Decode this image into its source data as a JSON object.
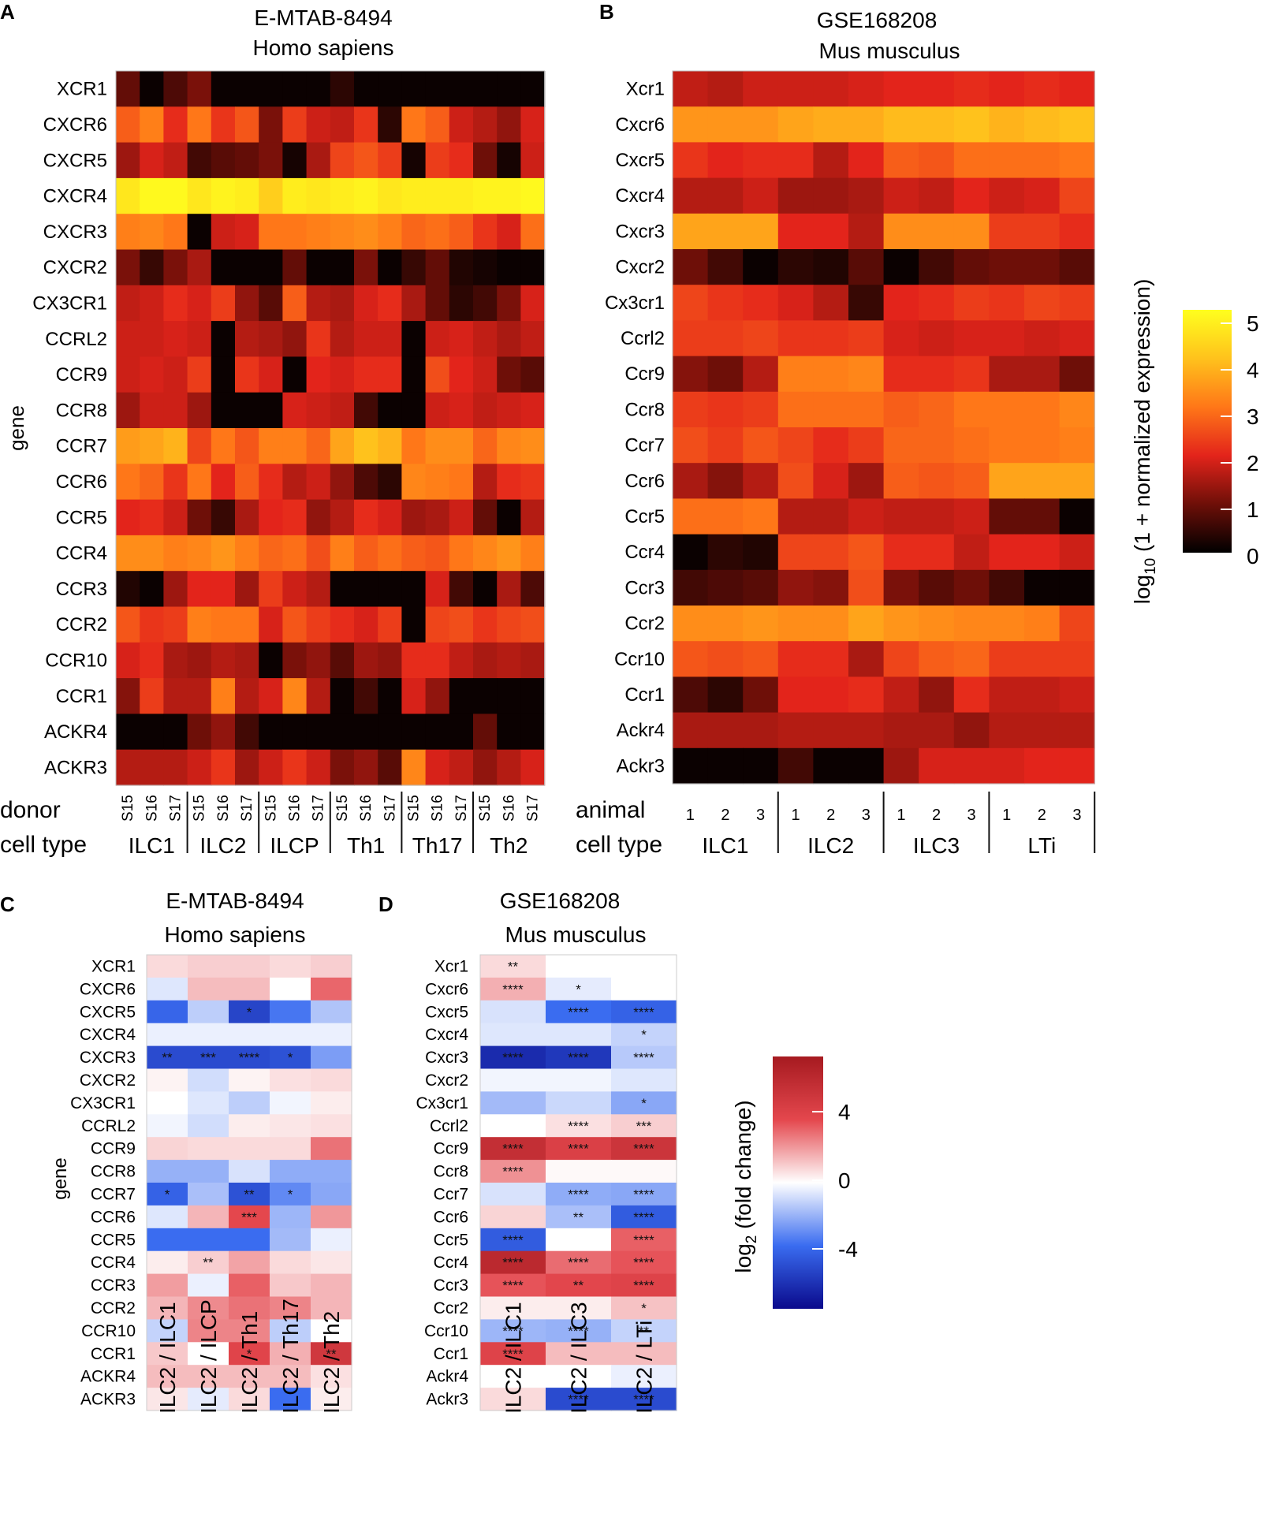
{
  "panels": {
    "A": {
      "letter": "A",
      "title1": "E-MTAB-8494",
      "title2": "Homo sapiens"
    },
    "B": {
      "letter": "B",
      "title1": "GSE168208",
      "title2": "Mus musculus"
    },
    "C": {
      "letter": "C",
      "title1": "E-MTAB-8494",
      "title2": "Homo sapiens"
    },
    "D": {
      "letter": "D",
      "title1": "GSE168208",
      "title2": "Mus musculus"
    }
  },
  "legend_expr": {
    "title": "log",
    "sub": "10",
    "title_rest": " (1 + normalized expression)",
    "ticks": [
      "5",
      "4",
      "3",
      "2",
      "1",
      "0"
    ]
  },
  "legend_fc": {
    "title": "log",
    "sub": "2",
    "title_rest": " (fold change)",
    "ticks": [
      "4",
      "0",
      "-4"
    ]
  },
  "chart_data": [
    {
      "type": "heatmap",
      "panel": "A",
      "ylabel": "gene",
      "rows": [
        "XCR1",
        "CXCR6",
        "CXCR5",
        "CXCR4",
        "CXCR3",
        "CXCR2",
        "CX3CR1",
        "CCRL2",
        "CCR9",
        "CCR8",
        "CCR7",
        "CCR6",
        "CCR5",
        "CCR4",
        "CCR3",
        "CCR2",
        "CCR10",
        "CCR1",
        "ACKR4",
        "ACKR3"
      ],
      "row_label": "donor",
      "group_label": "cell type",
      "donors": [
        "S15",
        "S16",
        "S17"
      ],
      "groups": [
        "ILC1",
        "ILC2",
        "ILCP",
        "Th1",
        "Th17",
        "Th2"
      ],
      "scale": [
        0,
        5
      ],
      "values": [
        [
          0.9,
          0.1,
          0.7,
          1.1,
          0.1,
          0.1,
          0.1,
          0.1,
          0.1,
          0.4,
          0.1,
          0.1,
          0.1,
          0.1,
          0.1,
          0.1,
          0.1,
          0.1
        ],
        [
          2.7,
          3.1,
          2.1,
          3.0,
          2.2,
          2.6,
          1.1,
          2.3,
          1.8,
          1.7,
          2.2,
          0.4,
          3.0,
          2.7,
          1.8,
          1.6,
          1.3,
          1.9
        ],
        [
          1.4,
          1.9,
          1.7,
          0.6,
          0.8,
          0.9,
          1.1,
          0.2,
          1.5,
          2.4,
          2.6,
          2.3,
          0.2,
          2.3,
          2.1,
          1.0,
          0.2,
          1.8
        ],
        [
          4.6,
          4.9,
          4.9,
          4.6,
          4.8,
          4.7,
          4.2,
          4.7,
          4.6,
          4.7,
          4.8,
          4.6,
          4.7,
          4.7,
          4.7,
          4.8,
          4.8,
          4.9
        ],
        [
          3.1,
          3.2,
          3.0,
          0.1,
          1.8,
          1.9,
          3.0,
          3.0,
          3.1,
          3.2,
          3.3,
          3.1,
          2.8,
          2.9,
          2.7,
          2.2,
          1.9,
          2.9
        ],
        [
          1.1,
          0.5,
          1.1,
          1.5,
          0.1,
          0.1,
          0.1,
          0.9,
          0.1,
          0.1,
          1.1,
          0.1,
          0.5,
          0.9,
          0.3,
          0.2,
          0.1,
          0.1
        ],
        [
          1.7,
          1.8,
          2.1,
          1.9,
          2.3,
          1.3,
          0.8,
          2.7,
          1.6,
          1.5,
          1.9,
          2.1,
          1.5,
          0.9,
          0.4,
          0.6,
          1.1,
          1.9
        ],
        [
          1.8,
          1.8,
          1.9,
          1.8,
          0.1,
          1.6,
          1.5,
          1.3,
          2.2,
          1.6,
          1.8,
          1.8,
          0.1,
          1.8,
          1.9,
          1.7,
          1.5,
          1.7
        ],
        [
          1.8,
          1.9,
          1.8,
          2.3,
          0.1,
          2.2,
          1.9,
          0.1,
          2.0,
          1.9,
          2.1,
          2.1,
          0.1,
          2.5,
          2.0,
          1.8,
          1.0,
          0.8
        ],
        [
          1.4,
          1.8,
          1.8,
          1.4,
          0.1,
          0.1,
          0.1,
          1.9,
          1.8,
          1.7,
          0.6,
          0.1,
          0.1,
          1.8,
          1.9,
          1.7,
          1.8,
          1.9
        ],
        [
          3.5,
          3.6,
          3.8,
          2.4,
          3.0,
          2.6,
          3.1,
          3.1,
          2.8,
          3.6,
          4.0,
          3.8,
          3.0,
          3.3,
          3.3,
          2.8,
          3.2,
          3.3
        ],
        [
          3.0,
          2.8,
          2.2,
          3.0,
          2.0,
          2.7,
          2.1,
          1.6,
          1.8,
          1.3,
          0.7,
          0.4,
          3.2,
          3.1,
          3.0,
          1.6,
          2.1,
          2.2
        ],
        [
          2.0,
          2.1,
          1.8,
          1.0,
          0.5,
          1.5,
          2.0,
          2.1,
          1.3,
          1.6,
          2.1,
          1.9,
          1.4,
          1.5,
          1.8,
          0.9,
          0.1,
          1.6
        ],
        [
          3.3,
          3.3,
          3.1,
          3.2,
          3.4,
          3.1,
          2.8,
          2.9,
          2.5,
          3.1,
          2.7,
          2.9,
          2.7,
          2.6,
          3.0,
          3.2,
          3.4,
          3.1
        ],
        [
          0.3,
          0.1,
          1.4,
          2.0,
          2.0,
          1.4,
          2.3,
          1.8,
          1.6,
          0.1,
          0.1,
          0.1,
          0.1,
          1.9,
          0.6,
          0.1,
          1.5,
          0.7
        ],
        [
          2.6,
          2.2,
          2.3,
          3.1,
          3.0,
          3.0,
          1.9,
          2.6,
          2.3,
          2.1,
          1.9,
          2.3,
          0.1,
          2.4,
          2.5,
          2.2,
          2.4,
          2.5
        ],
        [
          1.9,
          2.1,
          1.5,
          1.4,
          1.6,
          1.5,
          0.1,
          1.1,
          1.3,
          0.8,
          1.4,
          1.3,
          2.1,
          2.1,
          1.7,
          1.5,
          1.6,
          1.5
        ],
        [
          1.2,
          2.3,
          1.6,
          1.6,
          3.1,
          1.6,
          1.9,
          3.2,
          1.6,
          0.1,
          0.6,
          0.1,
          1.9,
          1.3,
          0.1,
          0.1,
          0.1,
          0.1
        ],
        [
          0.1,
          0.1,
          0.1,
          1.0,
          1.3,
          0.6,
          0.1,
          0.1,
          0.1,
          0.1,
          0.1,
          0.1,
          0.1,
          0.1,
          0.1,
          0.9,
          0.1,
          0.1
        ],
        [
          1.6,
          1.6,
          1.6,
          1.8,
          2.2,
          1.4,
          1.8,
          2.2,
          1.8,
          1.1,
          1.3,
          0.8,
          3.2,
          1.9,
          1.7,
          1.3,
          1.6,
          1.9
        ]
      ]
    },
    {
      "type": "heatmap",
      "panel": "B",
      "rows": [
        "Xcr1",
        "Cxcr6",
        "Cxcr5",
        "Cxcr4",
        "Cxcr3",
        "Cxcr2",
        "Cx3cr1",
        "Ccrl2",
        "Ccr9",
        "Ccr8",
        "Ccr7",
        "Ccr6",
        "Ccr5",
        "Ccr4",
        "Ccr3",
        "Ccr2",
        "Ccr10",
        "Ccr1",
        "Ackr4",
        "Ackr3"
      ],
      "row_label": "animal",
      "group_label": "cell type",
      "replicates": [
        "1",
        "2",
        "3"
      ],
      "groups": [
        "ILC1",
        "ILC2",
        "ILC3",
        "LTi"
      ],
      "scale": [
        0,
        5
      ],
      "values": [
        [
          1.7,
          1.6,
          1.8,
          1.8,
          1.8,
          1.9,
          2.0,
          2.0,
          2.1,
          2.0,
          2.1,
          2.0
        ],
        [
          3.4,
          3.4,
          3.4,
          3.6,
          3.7,
          3.7,
          3.9,
          3.9,
          4.0,
          3.8,
          3.9,
          4.0
        ],
        [
          2.2,
          2.0,
          2.1,
          2.1,
          1.6,
          2.0,
          2.7,
          2.6,
          2.9,
          2.9,
          2.9,
          3.0
        ],
        [
          1.6,
          1.6,
          1.8,
          1.4,
          1.4,
          1.5,
          1.8,
          1.7,
          2.0,
          1.8,
          1.9,
          2.4
        ],
        [
          3.6,
          3.6,
          3.6,
          2.0,
          2.0,
          1.6,
          3.3,
          3.3,
          3.3,
          2.3,
          2.3,
          2.1
        ],
        [
          1.0,
          0.6,
          0.1,
          0.4,
          0.3,
          0.8,
          0.1,
          0.6,
          0.9,
          1.0,
          1.0,
          0.8
        ],
        [
          2.4,
          2.2,
          2.1,
          1.9,
          1.6,
          0.5,
          2.0,
          2.1,
          2.3,
          2.2,
          2.4,
          2.3
        ],
        [
          2.3,
          2.3,
          2.4,
          2.2,
          2.2,
          2.3,
          1.9,
          1.8,
          1.9,
          1.9,
          1.8,
          1.9
        ],
        [
          1.2,
          1.0,
          1.6,
          3.1,
          3.1,
          3.2,
          2.1,
          2.1,
          2.2,
          1.5,
          1.5,
          1.0
        ],
        [
          2.3,
          2.2,
          2.3,
          2.9,
          2.9,
          2.9,
          2.7,
          2.8,
          3.0,
          3.0,
          3.0,
          3.2
        ],
        [
          2.5,
          2.3,
          2.6,
          2.4,
          2.1,
          2.3,
          2.8,
          2.8,
          2.9,
          3.0,
          3.0,
          3.1
        ],
        [
          1.5,
          1.2,
          1.6,
          2.5,
          1.9,
          1.4,
          2.7,
          2.6,
          2.7,
          3.6,
          3.6,
          3.6
        ],
        [
          2.9,
          2.9,
          3.0,
          1.6,
          1.6,
          1.8,
          1.7,
          1.7,
          1.8,
          0.9,
          0.9,
          0.1
        ],
        [
          0.1,
          0.4,
          0.3,
          2.4,
          2.4,
          2.6,
          2.1,
          2.1,
          1.7,
          2.0,
          2.0,
          1.8
        ],
        [
          0.6,
          0.7,
          0.8,
          1.3,
          1.2,
          2.5,
          1.1,
          0.8,
          1.0,
          0.6,
          0.1,
          0.1
        ],
        [
          3.3,
          3.3,
          3.4,
          3.3,
          3.3,
          3.6,
          3.4,
          3.3,
          3.2,
          3.2,
          3.1,
          2.4
        ],
        [
          2.6,
          2.5,
          2.6,
          2.1,
          2.1,
          1.5,
          2.4,
          2.7,
          2.8,
          2.3,
          2.3,
          2.3
        ],
        [
          0.7,
          0.4,
          1.0,
          2.0,
          2.0,
          2.1,
          1.7,
          1.3,
          2.1,
          1.7,
          1.7,
          1.8
        ],
        [
          1.5,
          1.5,
          1.5,
          1.6,
          1.6,
          1.6,
          1.5,
          1.5,
          1.3,
          1.6,
          1.6,
          1.6
        ],
        [
          0.1,
          0.1,
          0.1,
          0.6,
          0.1,
          0.1,
          1.4,
          1.9,
          1.9,
          1.9,
          2.0,
          2.0
        ]
      ]
    },
    {
      "type": "heatmap",
      "panel": "C",
      "ylabel": "gene",
      "rows": [
        "XCR1",
        "CXCR6",
        "CXCR5",
        "CXCR4",
        "CXCR3",
        "CXCR2",
        "CX3CR1",
        "CCRL2",
        "CCR9",
        "CCR8",
        "CCR7",
        "CCR6",
        "CCR5",
        "CCR4",
        "CCR3",
        "CCR2",
        "CCR10",
        "CCR1",
        "ACKR4",
        "ACKR3"
      ],
      "columns": [
        "ILC2 / ILC1",
        "ILC2 / ILCP",
        "ILC2 / Th1",
        "ILC2 / Th17",
        "ILC2 / Th2"
      ],
      "scale": [
        -6,
        6
      ],
      "values": [
        [
          0.6,
          0.8,
          0.8,
          0.6,
          0.8
        ],
        [
          -0.5,
          1.1,
          1.1,
          0.0,
          2.5
        ],
        [
          -3.2,
          -1.0,
          -4.2,
          -2.8,
          -1.2
        ],
        [
          -0.3,
          -0.3,
          -0.3,
          -0.3,
          -0.3
        ],
        [
          -4.0,
          -4.0,
          -4.0,
          -3.8,
          -2.0
        ],
        [
          0.2,
          -0.7,
          0.2,
          0.5,
          0.6
        ],
        [
          0.0,
          -0.5,
          -1.0,
          -0.2,
          0.3
        ],
        [
          -0.2,
          -0.7,
          0.3,
          0.4,
          0.5
        ],
        [
          0.7,
          0.6,
          0.6,
          0.6,
          2.3
        ],
        [
          -1.6,
          -1.6,
          -0.6,
          -1.7,
          -1.7
        ],
        [
          -3.3,
          -1.3,
          -3.8,
          -2.4,
          -1.8
        ],
        [
          -0.5,
          1.2,
          3.0,
          -1.5,
          1.7
        ],
        [
          -3.0,
          -3.0,
          -3.0,
          -1.4,
          -0.3
        ],
        [
          0.3,
          0.8,
          1.5,
          0.6,
          0.4
        ],
        [
          1.6,
          -0.3,
          2.6,
          0.9,
          1.2
        ],
        [
          1.2,
          1.9,
          2.3,
          2.0,
          1.2
        ],
        [
          -0.9,
          2.0,
          2.0,
          -1.0,
          0.0
        ],
        [
          0.9,
          0.0,
          3.2,
          1.3,
          4.0
        ],
        [
          1.1,
          1.1,
          1.1,
          1.1,
          0.5
        ],
        [
          0.4,
          -0.4,
          0.6,
          -3.0,
          0.3
        ]
      ],
      "annotations": [
        [
          "",
          "",
          "",
          "",
          ""
        ],
        [
          "",
          "",
          "",
          "",
          ""
        ],
        [
          "",
          "",
          "*",
          "",
          ""
        ],
        [
          "",
          "",
          "",
          "",
          ""
        ],
        [
          "**",
          "***",
          "****",
          "*",
          ""
        ],
        [
          "",
          "",
          "",
          "",
          ""
        ],
        [
          "",
          "",
          "",
          "",
          ""
        ],
        [
          "",
          "",
          "",
          "",
          ""
        ],
        [
          "",
          "",
          "",
          "",
          ""
        ],
        [
          "",
          "",
          "",
          "",
          ""
        ],
        [
          "*",
          "",
          "**",
          "*",
          ""
        ],
        [
          "",
          "",
          "***",
          "",
          ""
        ],
        [
          "",
          "",
          "",
          "",
          ""
        ],
        [
          "",
          "**",
          "",
          "",
          ""
        ],
        [
          "",
          "",
          "",
          "",
          ""
        ],
        [
          "",
          "",
          "",
          "",
          ""
        ],
        [
          "",
          "",
          "",
          "",
          ""
        ],
        [
          "",
          "",
          "*",
          "",
          "**"
        ],
        [
          "",
          "",
          "",
          "",
          ""
        ],
        [
          "",
          "",
          "",
          "",
          ""
        ]
      ]
    },
    {
      "type": "heatmap",
      "panel": "D",
      "rows": [
        "Xcr1",
        "Cxcr6",
        "Cxcr5",
        "Cxcr4",
        "Cxcr3",
        "Cxcr2",
        "Cx3cr1",
        "Ccrl2",
        "Ccr9",
        "Ccr8",
        "Ccr7",
        "Ccr6",
        "Ccr5",
        "Ccr4",
        "Ccr3",
        "Ccr2",
        "Ccr10",
        "Ccr1",
        "Ackr4",
        "Ackr3"
      ],
      "columns": [
        "ILC2 / ILC1",
        "ILC2 / ILC3",
        "ILC2 / LTi"
      ],
      "scale": [
        -6,
        6
      ],
      "values": [
        [
          0.6,
          0.0,
          0.0
        ],
        [
          1.3,
          -0.4,
          0.0
        ],
        [
          -0.6,
          -3.0,
          -3.3
        ],
        [
          -0.5,
          -0.5,
          -0.9
        ],
        [
          -5.0,
          -4.6,
          -1.1
        ],
        [
          -0.2,
          -0.2,
          -0.5
        ],
        [
          -1.4,
          -0.8,
          -1.8
        ],
        [
          0.0,
          0.5,
          0.8
        ],
        [
          4.6,
          3.5,
          4.2
        ],
        [
          1.8,
          0.1,
          0.1
        ],
        [
          -0.6,
          -1.7,
          -1.8
        ],
        [
          0.7,
          -1.3,
          -3.5
        ],
        [
          -3.5,
          0.0,
          2.6
        ],
        [
          5.0,
          2.4,
          2.8
        ],
        [
          2.8,
          3.1,
          3.3
        ],
        [
          0.3,
          0.3,
          1.0
        ],
        [
          -1.5,
          -1.6,
          -0.9
        ],
        [
          3.3,
          1.1,
          1.1
        ],
        [
          0.0,
          0.0,
          -0.3
        ],
        [
          0.6,
          -4.0,
          -4.0
        ]
      ],
      "annotations": [
        [
          "**",
          "",
          ""
        ],
        [
          "****",
          "*",
          ""
        ],
        [
          "",
          "****",
          "****"
        ],
        [
          "",
          "",
          "*"
        ],
        [
          "****",
          "****",
          "****"
        ],
        [
          "",
          "",
          ""
        ],
        [
          "",
          "",
          "*"
        ],
        [
          "",
          "****",
          "***"
        ],
        [
          "****",
          "****",
          "****"
        ],
        [
          "****",
          "",
          ""
        ],
        [
          "",
          "****",
          "****"
        ],
        [
          "",
          "**",
          "****"
        ],
        [
          "****",
          "",
          "****"
        ],
        [
          "****",
          "****",
          "****"
        ],
        [
          "****",
          "**",
          "****"
        ],
        [
          "",
          "",
          "*"
        ],
        [
          "****",
          "****",
          "**"
        ],
        [
          "****",
          "",
          ""
        ],
        [
          "",
          "",
          ""
        ],
        [
          "",
          "****",
          "****"
        ]
      ]
    }
  ]
}
